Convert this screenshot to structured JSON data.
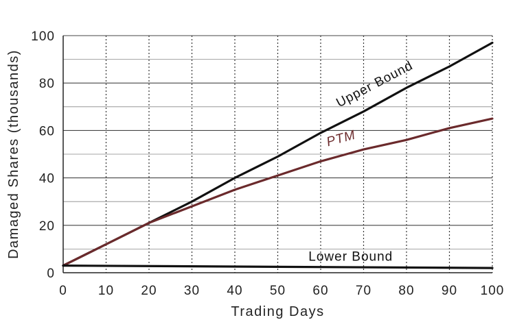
{
  "chart_data": {
    "type": "line",
    "title": "",
    "xlabel": "Trading Days",
    "ylabel": "Damaged Shares (thousands)",
    "xlim": [
      0,
      100
    ],
    "ylim": [
      0,
      100
    ],
    "x_ticks": [
      0,
      10,
      20,
      30,
      40,
      50,
      60,
      70,
      80,
      90,
      100
    ],
    "y_ticks": [
      0,
      20,
      40,
      60,
      80,
      100
    ],
    "grid": true,
    "colors": {
      "upper": "#111111",
      "ptm": "#6b2a2c",
      "lower": "#111111"
    },
    "series": [
      {
        "name": "Upper Bound",
        "x": [
          0,
          10,
          20,
          30,
          40,
          50,
          60,
          70,
          80,
          90,
          100
        ],
        "y": [
          3,
          12,
          21,
          30,
          40,
          49,
          59,
          68,
          78,
          87,
          97
        ]
      },
      {
        "name": "PTM",
        "x": [
          0,
          10,
          20,
          30,
          40,
          50,
          60,
          70,
          80,
          90,
          100
        ],
        "y": [
          3,
          12,
          21,
          28,
          35,
          41,
          47,
          52,
          56,
          61,
          65
        ]
      },
      {
        "name": "Lower Bound",
        "x": [
          0,
          100
        ],
        "y": [
          3,
          2
        ]
      }
    ]
  }
}
